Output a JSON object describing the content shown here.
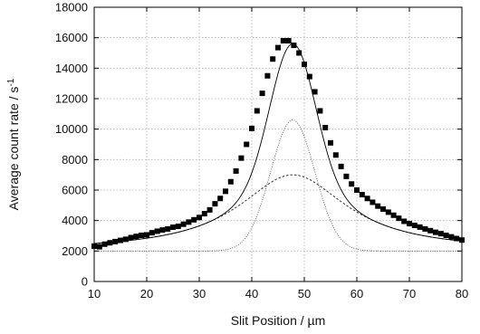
{
  "chart_data": {
    "type": "scatter",
    "xlabel": "Slit Position / µm",
    "ylabel": "Average count rate / s",
    "ylabel_sup": "-1",
    "xlim": [
      10,
      80
    ],
    "ylim": [
      0,
      18000
    ],
    "x_ticks": [
      "10",
      "20",
      "30",
      "40",
      "50",
      "60",
      "70",
      "80"
    ],
    "y_ticks": [
      "0",
      "2000",
      "4000",
      "6000",
      "8000",
      "10000",
      "12000",
      "14000",
      "16000",
      "18000"
    ],
    "grid": true,
    "legend": "none",
    "colors": {
      "points": "#000000",
      "fit": "#000000",
      "gaussian": "#555555",
      "lorentzian": "#333333",
      "grid": "#b0b0b0"
    },
    "model": {
      "baseline": 2000,
      "gaussian": {
        "amplitude": 8600,
        "center": 47.8,
        "sigma": 4.2
      },
      "lorentzian": {
        "amplitude": 5000,
        "center": 47.8,
        "gamma": 12.5
      }
    },
    "series": [
      {
        "kind": "points",
        "x": [
          10,
          11,
          12,
          13,
          14,
          15,
          16,
          17,
          18,
          19,
          20,
          21,
          22,
          23,
          24,
          25,
          26,
          27,
          28,
          29,
          30,
          31,
          32,
          33,
          34,
          35,
          36,
          37,
          38,
          39,
          40,
          41,
          42,
          43,
          44,
          45,
          46,
          47,
          48,
          49,
          50,
          51,
          52,
          53,
          54,
          55,
          56,
          57,
          58,
          59,
          60,
          61,
          62,
          63,
          64,
          65,
          66,
          67,
          68,
          69,
          70,
          71,
          72,
          73,
          74,
          75,
          76,
          77,
          78,
          79,
          80
        ],
        "y": [
          2320,
          2280,
          2450,
          2540,
          2620,
          2700,
          2770,
          2880,
          2960,
          3030,
          3060,
          3200,
          3300,
          3380,
          3450,
          3560,
          3620,
          3760,
          3900,
          4050,
          4200,
          4450,
          4700,
          5100,
          5450,
          5920,
          6550,
          7250,
          8100,
          9000,
          10050,
          11200,
          12350,
          13500,
          14600,
          15350,
          15800,
          15800,
          15500,
          15000,
          14250,
          13450,
          12450,
          11200,
          10100,
          9100,
          8300,
          7550,
          6900,
          6400,
          6000,
          5700,
          5450,
          5200,
          4950,
          4750,
          4550,
          4350,
          4150,
          3950,
          3800,
          3680,
          3570,
          3450,
          3340,
          3230,
          3140,
          3030,
          2930,
          2820,
          2720
        ]
      }
    ]
  }
}
